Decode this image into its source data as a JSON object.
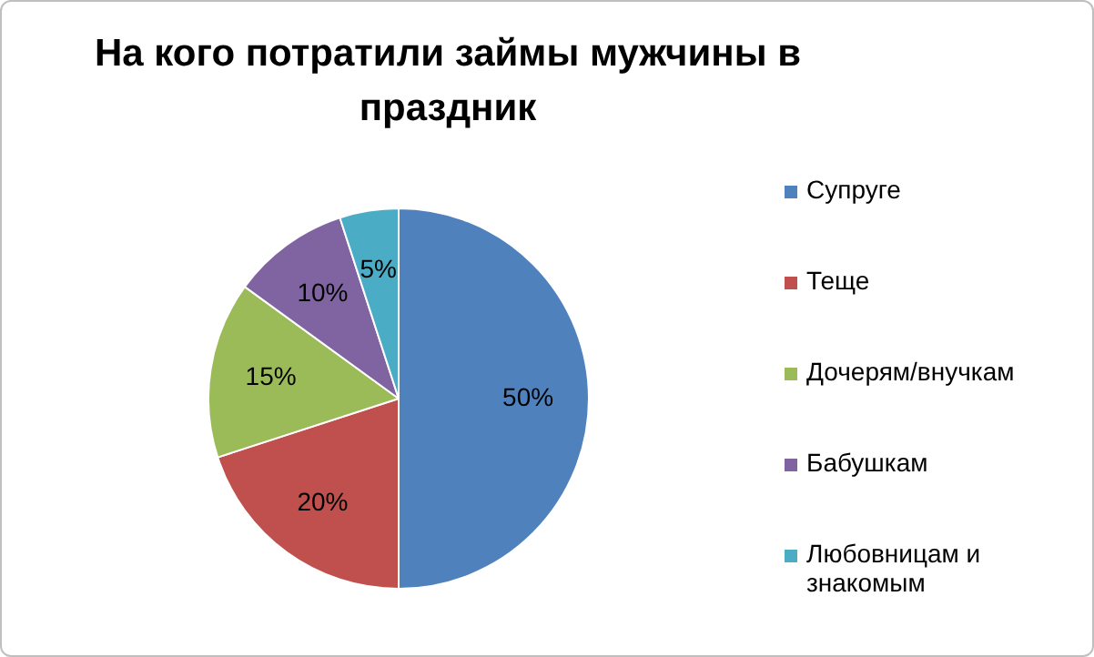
{
  "chart_data": {
    "type": "pie",
    "title": "На кого потратили займы мужчины в праздник",
    "categories": [
      "Супруге",
      "Теще",
      "Дочерям/внучкам",
      "Бабушкам",
      "Любовницам и знакомым"
    ],
    "values": [
      50,
      20,
      15,
      10,
      5
    ],
    "value_labels": [
      "50%",
      "20%",
      "15%",
      "10%",
      "5%"
    ],
    "colors": [
      "#4f81bd",
      "#c0504d",
      "#9bbb59",
      "#8064a2",
      "#4bacc6"
    ],
    "legend": "right"
  }
}
